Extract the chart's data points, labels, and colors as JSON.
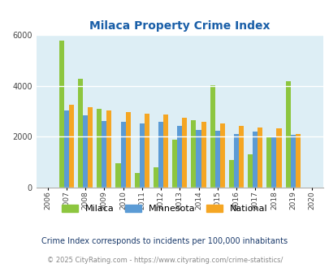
{
  "title": "Milaca Property Crime Index",
  "years": [
    2006,
    2007,
    2008,
    2009,
    2010,
    2011,
    2012,
    2013,
    2014,
    2015,
    2016,
    2017,
    2018,
    2019,
    2020
  ],
  "milaca": [
    0,
    5780,
    4280,
    3100,
    950,
    580,
    800,
    1870,
    2640,
    4010,
    1100,
    1310,
    2010,
    4180,
    0
  ],
  "minnesota": [
    0,
    3030,
    2850,
    2600,
    2570,
    2530,
    2580,
    2420,
    2250,
    2240,
    2100,
    2200,
    2010,
    2070,
    0
  ],
  "national": [
    0,
    3260,
    3150,
    3030,
    2970,
    2890,
    2870,
    2730,
    2590,
    2510,
    2440,
    2360,
    2340,
    2100,
    0
  ],
  "colors": {
    "milaca": "#8dc63f",
    "minnesota": "#5b9bd5",
    "national": "#f5a623"
  },
  "ylim": [
    0,
    6000
  ],
  "yticks": [
    0,
    2000,
    4000,
    6000
  ],
  "background_color": "#ddeef5",
  "footnote1": "Crime Index corresponds to incidents per 100,000 inhabitants",
  "footnote2": "© 2025 CityRating.com - https://www.cityrating.com/crime-statistics/",
  "title_color": "#1a5fa8",
  "footnote1_color": "#1a3a6b",
  "footnote2_color": "#888888",
  "footnote2_url_color": "#4488cc"
}
